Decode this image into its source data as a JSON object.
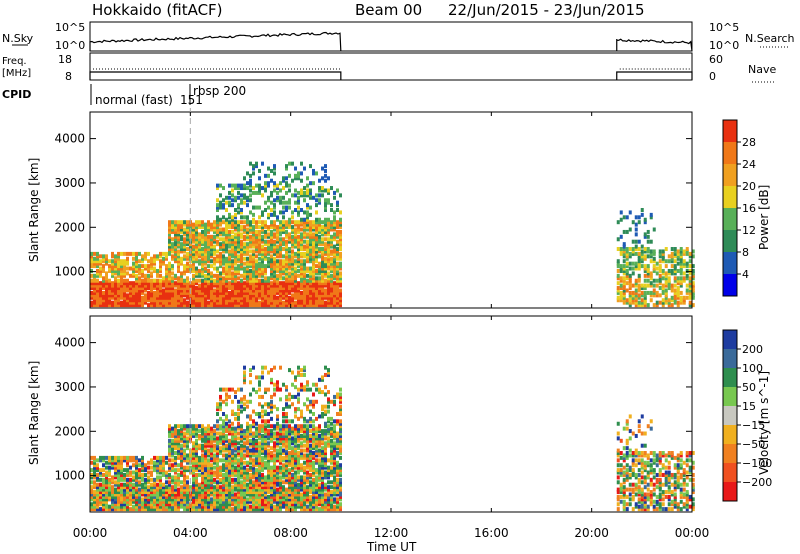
{
  "header": {
    "station": "Hokkaido (fitACF)",
    "beam": "Beam 00",
    "date_range": "22/Jun/2015 - 23/Jun/2015"
  },
  "panels": {
    "nsky_label": "N.Sky",
    "nsearch_label": "N.Search",
    "freq_label_line1": "Freq.",
    "freq_label_line2": "[MHz]",
    "nave_label": "Nave",
    "cpid_label": "CPID",
    "noise_ticks_left": [
      "10^5",
      "10^0"
    ],
    "noise_ticks_right": [
      "10^5",
      "10^0"
    ],
    "freq_ticks_left": [
      "18",
      "8"
    ],
    "freq_ticks_right": [
      "60",
      "0"
    ],
    "cpid_entries": [
      {
        "text": "normal (fast)",
        "start_hour": 0
      },
      {
        "text": "151",
        "start_hour": 3.95
      },
      {
        "text": "rbsp  200",
        "start_hour": 4.0
      }
    ],
    "marker_hour": 4.0
  },
  "chart_data": [
    {
      "type": "heatmap",
      "name": "power",
      "ylabel": "Slant Range [km]",
      "yticks": [
        "1000",
        "2000",
        "3000",
        "4000"
      ],
      "ylim": [
        180,
        4600
      ],
      "xlim_hours": [
        0,
        24
      ],
      "colorbar": {
        "label": "Power [dB]",
        "ticks": [
          "4",
          "8",
          "12",
          "16",
          "20",
          "24",
          "28"
        ],
        "colors": [
          "#0000e8",
          "#1e5ab4",
          "#2e8b57",
          "#58b058",
          "#e8d020",
          "#f0a020",
          "#f07818",
          "#e83010"
        ],
        "range": [
          0,
          32
        ]
      },
      "data_intervals_hours": [
        [
          0,
          10.0
        ],
        [
          21.0,
          24.0
        ]
      ]
    },
    {
      "type": "heatmap",
      "name": "velocity",
      "ylabel": "Slant Range [km]",
      "yticks": [
        "1000",
        "2000",
        "3000",
        "4000"
      ],
      "ylim": [
        180,
        4600
      ],
      "xlim_hours": [
        0,
        24
      ],
      "colorbar": {
        "label": "Velocity [m s^-1]",
        "ticks": [
          "200",
          "100",
          "50",
          "15",
          "-15",
          "-50",
          "-100",
          "-200"
        ],
        "colors": [
          "#1e3ca0",
          "#3a6a9a",
          "#2e8e4e",
          "#78c850",
          "#c8c8c0",
          "#f0b020",
          "#f08020",
          "#f05020",
          "#e81818"
        ],
        "range": [
          -250,
          250
        ]
      },
      "data_intervals_hours": [
        [
          0,
          10.0
        ],
        [
          21.0,
          24.0
        ]
      ]
    }
  ],
  "time_axis": {
    "ticks": [
      "00:00",
      "04:00",
      "08:00",
      "12:00",
      "16:00",
      "20:00",
      "00:00"
    ],
    "label": "Time UT"
  }
}
